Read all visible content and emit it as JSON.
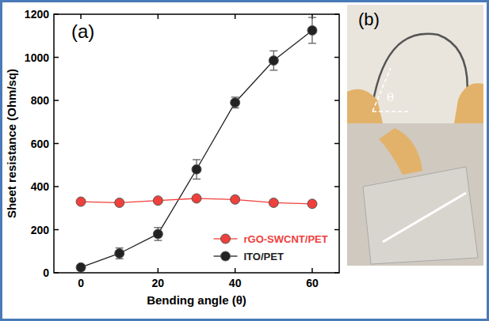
{
  "chart_data": {
    "type": "line",
    "annotations": [
      "(a)"
    ],
    "x_label": "Bending angle (θ)",
    "y_label": "Sheet resistance (Ohm/sq)",
    "x": [
      0,
      10,
      20,
      30,
      40,
      50,
      60
    ],
    "series": [
      {
        "name": "rGO-SWCNT/PET",
        "color": "#f0403c",
        "marker": "circle",
        "line_style": "solid",
        "values": [
          330,
          325,
          335,
          345,
          340,
          325,
          320
        ],
        "errors": [
          8,
          8,
          8,
          10,
          8,
          8,
          8
        ]
      },
      {
        "name": "ITO/PET",
        "color": "#222222",
        "marker": "circle",
        "line_style": "solid",
        "values": [
          25,
          90,
          180,
          480,
          790,
          985,
          1125
        ],
        "errors": [
          10,
          25,
          30,
          45,
          25,
          45,
          60
        ]
      }
    ],
    "xlim": [
      -7,
      67
    ],
    "xticks": [
      0,
      20,
      40,
      60
    ],
    "ylim": [
      0,
      1200
    ],
    "yticks": [
      0,
      200,
      400,
      600,
      800,
      1000,
      1200
    ],
    "grid": false,
    "legend": "lower right"
  },
  "photo": {
    "label": "(b)",
    "angle_label": "θ"
  }
}
